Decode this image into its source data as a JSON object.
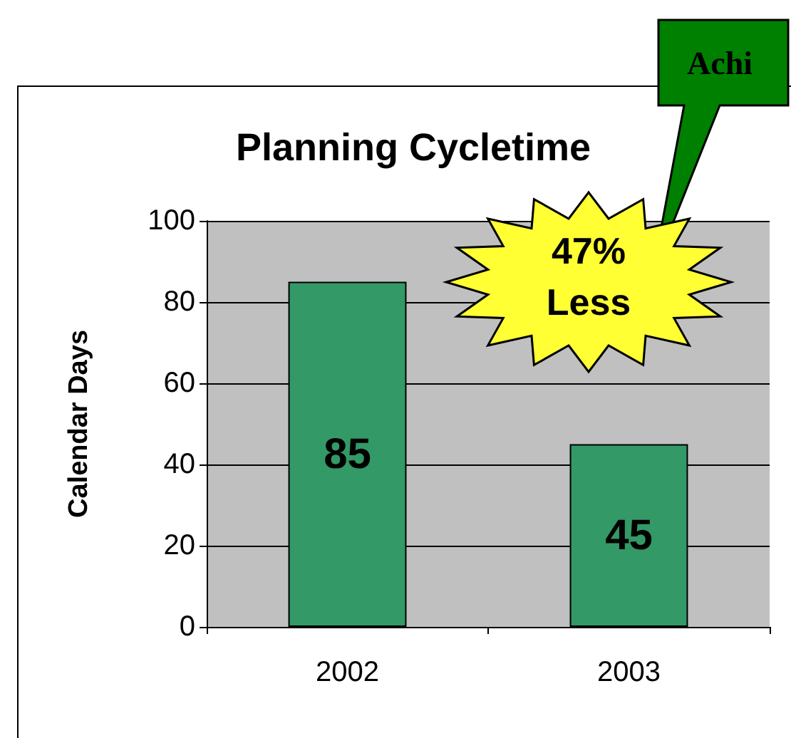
{
  "chart_data": {
    "type": "bar",
    "title": "Planning Cycletime",
    "ylabel": "Calendar Days",
    "categories": [
      "2002",
      "2003"
    ],
    "values": [
      85,
      45
    ],
    "color": "#339966",
    "ylim": [
      0,
      100
    ],
    "yticks": [
      0,
      20,
      40,
      60,
      80,
      100
    ],
    "grid": "y",
    "data_labels": true,
    "annotations": [
      "47%\nLess",
      "Achi"
    ]
  }
}
